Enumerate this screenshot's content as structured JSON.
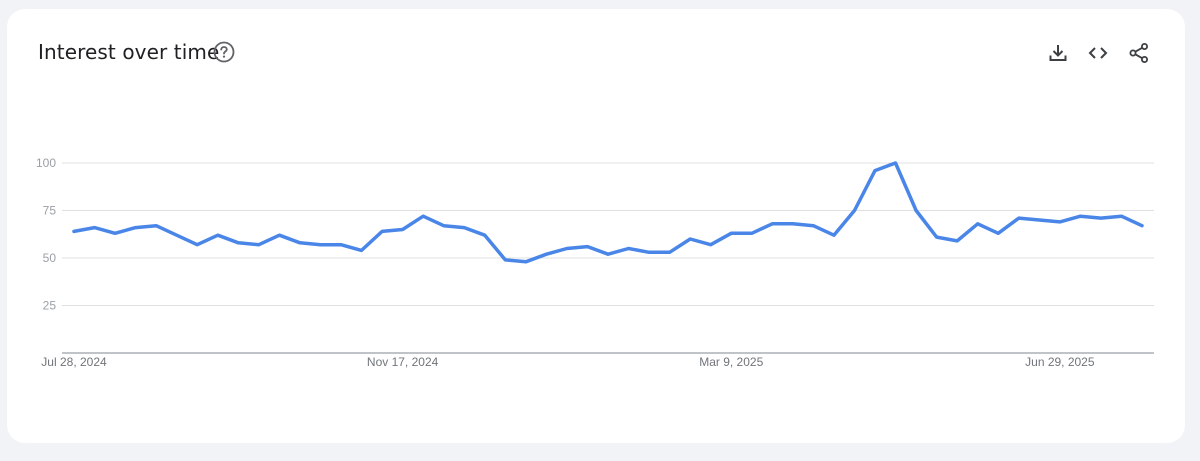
{
  "header": {
    "title": "Interest over time",
    "help_icon": "help-circle-icon",
    "tools": [
      {
        "name": "download",
        "icon": "download-icon"
      },
      {
        "name": "embed",
        "icon": "code-icon"
      },
      {
        "name": "share",
        "icon": "share-icon"
      }
    ]
  },
  "colors": {
    "line": "#4a86e8",
    "grid": "#e0e0e0",
    "axis": "#9aa0a6",
    "background": "#f1f3f7"
  },
  "chart_data": {
    "type": "line",
    "title": "Interest over time",
    "xlabel": "",
    "ylabel": "",
    "ylim": [
      0,
      100
    ],
    "yticks": [
      25,
      50,
      75,
      100
    ],
    "x_tick_labels": [
      "Jul 28, 2024",
      "Nov 17, 2024",
      "Mar 9, 2025",
      "Jun 29, 2025"
    ],
    "grid": true,
    "series": [
      {
        "values": [
          64,
          66,
          63,
          66,
          67,
          62,
          57,
          62,
          58,
          57,
          62,
          58,
          57,
          57,
          54,
          64,
          65,
          72,
          67,
          66,
          62,
          49,
          48,
          52,
          55,
          56,
          52,
          55,
          53,
          53,
          60,
          57,
          63,
          63,
          68,
          68,
          67,
          62,
          75,
          96,
          100,
          75,
          61,
          59,
          68,
          63,
          71,
          70,
          69,
          72,
          71,
          72,
          67
        ]
      }
    ]
  }
}
